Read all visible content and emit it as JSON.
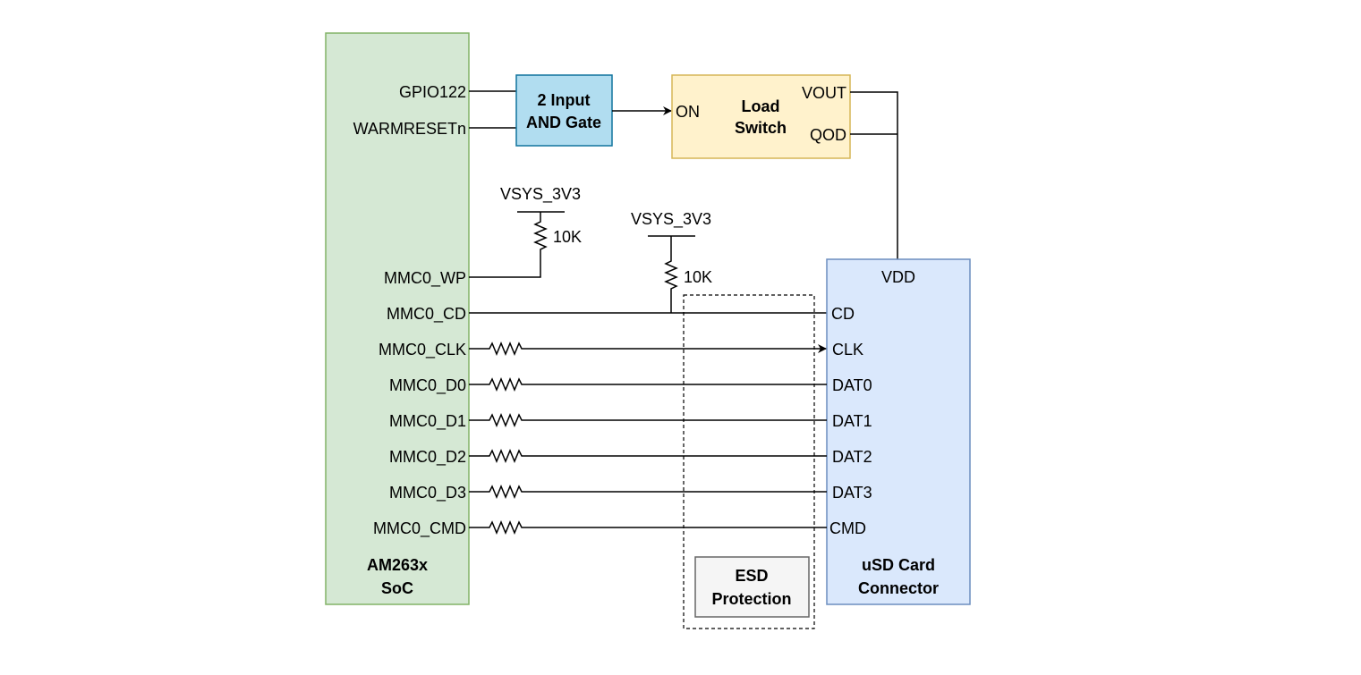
{
  "soc": {
    "title_line1": "AM263x",
    "title_line2": "SoC",
    "fill": "#d5e8d4",
    "stroke": "#82b366",
    "pins": {
      "gpio": "GPIO122",
      "warmreset": "WARMRESETn",
      "wp": "MMC0_WP",
      "cd": "MMC0_CD"
    }
  },
  "and_gate": {
    "line1": "2 Input",
    "line2": "AND Gate",
    "fill": "#b1ddf0",
    "stroke": "#10739e"
  },
  "load_switch": {
    "line1": "Load",
    "line2": "Switch",
    "on": "ON",
    "vout": "VOUT",
    "qod": "QOD",
    "fill": "#fff2cc",
    "stroke": "#d6b656"
  },
  "pullups": [
    {
      "supply": "VSYS_3V3",
      "value": "10K"
    },
    {
      "supply": "VSYS_3V3",
      "value": "10K"
    }
  ],
  "usd": {
    "line1": "uSD Card",
    "line2": "Connector",
    "vdd": "VDD",
    "cd": "CD",
    "fill": "#dae8fc",
    "stroke": "#6c8ebf"
  },
  "esd": {
    "line1": "ESD",
    "line2": "Protection",
    "fill": "#f5f5f5",
    "stroke": "#666666"
  },
  "signals": [
    {
      "soc_pin": "MMC0_CLK",
      "card_pin": "CLK",
      "arrow": true
    },
    {
      "soc_pin": "MMC0_D0",
      "card_pin": "DAT0",
      "arrow": false
    },
    {
      "soc_pin": "MMC0_D1",
      "card_pin": "DAT1",
      "arrow": false
    },
    {
      "soc_pin": "MMC0_D2",
      "card_pin": "DAT2",
      "arrow": false
    },
    {
      "soc_pin": "MMC0_D3",
      "card_pin": "DAT3",
      "arrow": false
    },
    {
      "soc_pin": "MMC0_CMD",
      "card_pin": "CMD",
      "arrow": false
    }
  ]
}
